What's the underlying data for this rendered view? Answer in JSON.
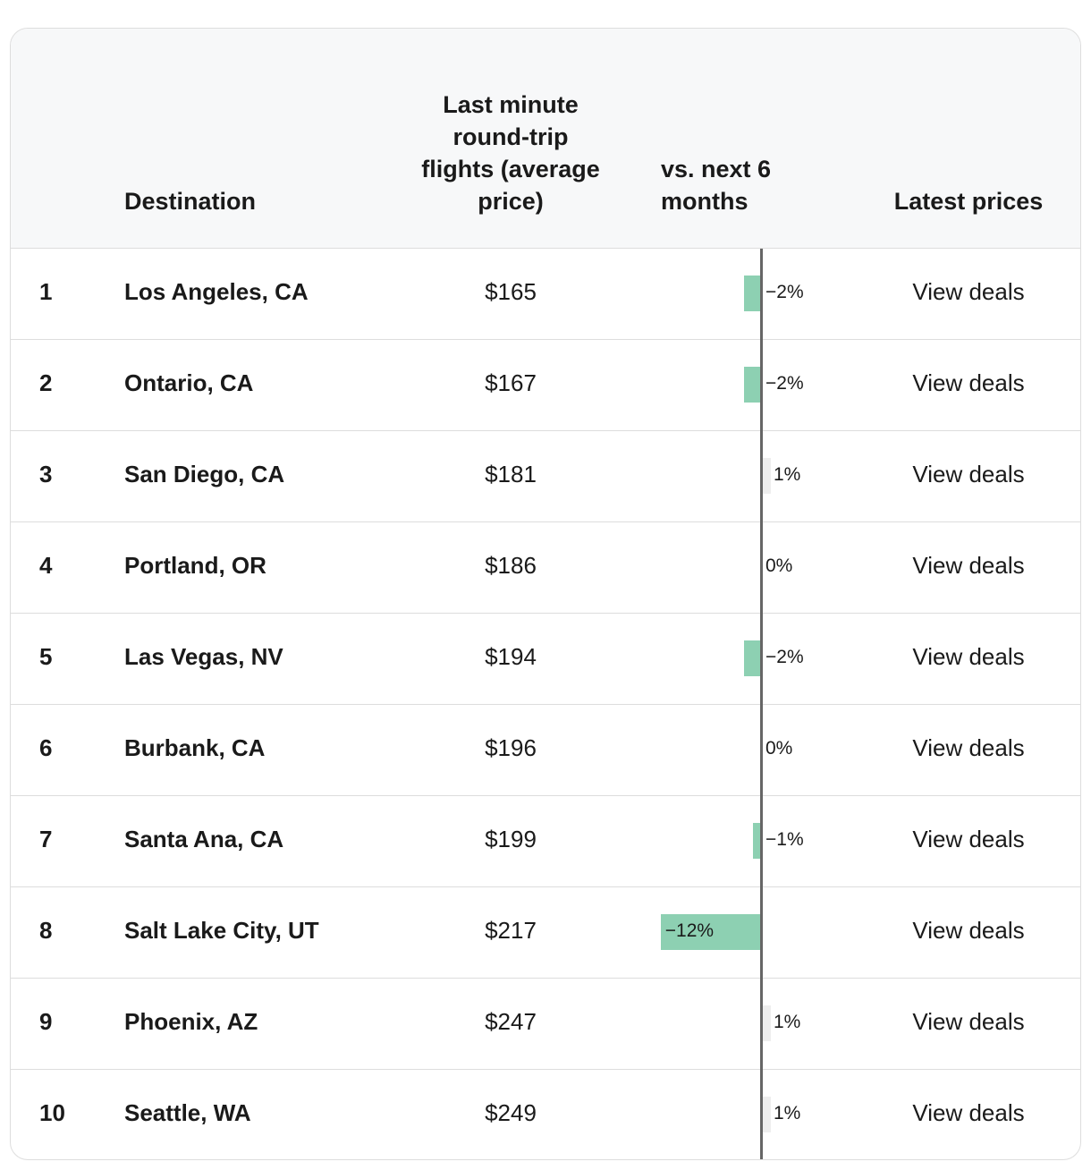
{
  "header": {
    "rank": "",
    "destination": "Destination",
    "price": "Last minute round-trip flights (average price)",
    "change": "vs. next 6 months",
    "latest": "Latest prices"
  },
  "colors": {
    "negative": "#8dd0b2",
    "positive": "#eeeeee",
    "axis": "#666666"
  },
  "chart_data": {
    "type": "table",
    "columns": [
      "#",
      "Destination",
      "Last minute round-trip flights (average price)",
      "vs. next 6 months",
      "Latest prices"
    ],
    "rows": [
      {
        "rank": "1",
        "destination": "Los Angeles, CA",
        "price": "$165",
        "change": -2,
        "change_label": "−2%",
        "link": "View deals"
      },
      {
        "rank": "2",
        "destination": "Ontario, CA",
        "price": "$167",
        "change": -2,
        "change_label": "−2%",
        "link": "View deals"
      },
      {
        "rank": "3",
        "destination": "San Diego, CA",
        "price": "$181",
        "change": 1,
        "change_label": "1%",
        "link": "View deals"
      },
      {
        "rank": "4",
        "destination": "Portland, OR",
        "price": "$186",
        "change": 0,
        "change_label": "0%",
        "link": "View deals"
      },
      {
        "rank": "5",
        "destination": "Las Vegas, NV",
        "price": "$194",
        "change": -2,
        "change_label": "−2%",
        "link": "View deals"
      },
      {
        "rank": "6",
        "destination": "Burbank, CA",
        "price": "$196",
        "change": 0,
        "change_label": "0%",
        "link": "View deals"
      },
      {
        "rank": "7",
        "destination": "Santa Ana, CA",
        "price": "$199",
        "change": -1,
        "change_label": "−1%",
        "link": "View deals"
      },
      {
        "rank": "8",
        "destination": "Salt Lake City, UT",
        "price": "$217",
        "change": -12,
        "change_label": "−12%",
        "link": "View deals"
      },
      {
        "rank": "9",
        "destination": "Phoenix, AZ",
        "price": "$247",
        "change": 1,
        "change_label": "1%",
        "link": "View deals"
      },
      {
        "rank": "10",
        "destination": "Seattle, WA",
        "price": "$249",
        "change": 1,
        "change_label": "1%",
        "link": "View deals"
      }
    ]
  }
}
